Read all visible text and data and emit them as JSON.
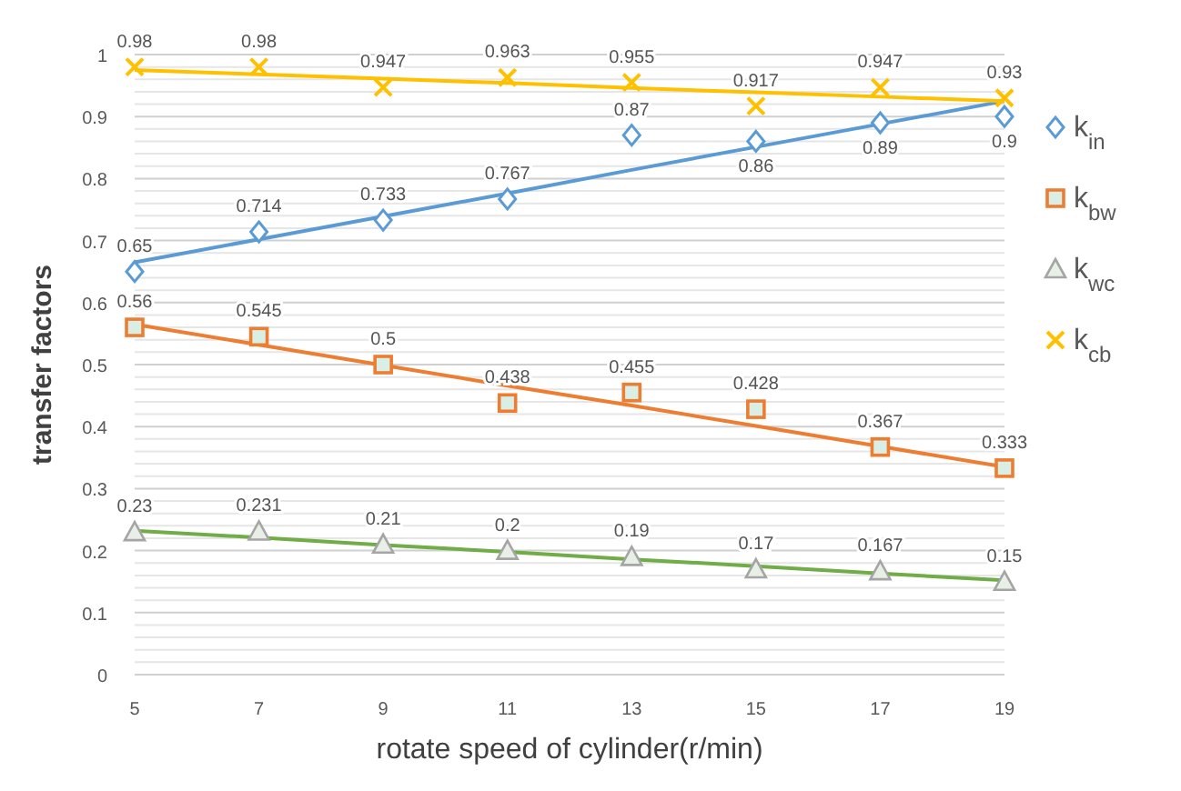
{
  "chart_data": {
    "type": "scatter",
    "xlabel": "rotate speed of cylinder(r/min)",
    "ylabel": "transfer factors",
    "x": [
      5,
      7,
      9,
      11,
      13,
      15,
      17,
      19
    ],
    "xlim": [
      5,
      19
    ],
    "xticks": [
      5,
      7,
      9,
      11,
      13,
      15,
      17,
      19
    ],
    "ylim": [
      0,
      1
    ],
    "yticks": [
      0,
      0.1,
      0.2,
      0.3,
      0.4,
      0.5,
      0.6,
      0.7,
      0.8,
      0.9,
      1
    ],
    "grid": "y",
    "legend": "right",
    "series": [
      {
        "name": "k$_{in}$",
        "color": "#5b9bd5",
        "marker": "diamond",
        "values": [
          0.65,
          0.714,
          0.733,
          0.767,
          0.87,
          0.86,
          0.89,
          0.9
        ],
        "value_labels": [
          "0.65",
          "0.714",
          "0.733",
          "0.767",
          "0.87",
          "0.86",
          "0.89",
          "0.9"
        ]
      },
      {
        "name": "k$_{bw}$",
        "color": "#ed7d31",
        "marker": "square",
        "values": [
          0.56,
          0.545,
          0.5,
          0.438,
          0.455,
          0.428,
          0.367,
          0.333
        ],
        "value_labels": [
          "0.56",
          "0.545",
          "0.5",
          "0.438",
          "0.455",
          "0.428",
          "0.367",
          "0.333"
        ]
      },
      {
        "name": "k$_{wc}$",
        "color": "#a5a5a5",
        "marker": "triangle",
        "values": [
          0.23,
          0.231,
          0.21,
          0.2,
          0.19,
          0.17,
          0.167,
          0.15
        ],
        "value_labels": [
          "0.23",
          "0.231",
          "0.21",
          "0.2",
          "0.19",
          "0.17",
          "0.167",
          "0.15"
        ]
      },
      {
        "name": "k$_{cb}$",
        "color": "#ffc000",
        "marker": "cross",
        "values": [
          0.98,
          0.98,
          0.947,
          0.963,
          0.955,
          0.917,
          0.947,
          0.93
        ],
        "value_labels": [
          "0.98",
          "0.98",
          "0.947",
          "0.963",
          "0.955",
          "0.917",
          "0.947",
          "0.93"
        ]
      },
      {
        "type": "line",
        "color": "#5b9bd5",
        "values": [
          0.665,
          0.702,
          0.739,
          0.776,
          0.814,
          0.851,
          0.888,
          0.925
        ]
      },
      {
        "type": "line",
        "color": "#ed7d31",
        "values": [
          0.565,
          0.532,
          0.499,
          0.466,
          0.434,
          0.401,
          0.368,
          0.335
        ]
      },
      {
        "type": "line",
        "color": "#70ad47",
        "values": [
          0.232,
          0.221,
          0.209,
          0.198,
          0.186,
          0.175,
          0.163,
          0.152
        ]
      },
      {
        "type": "line",
        "color": "#ffc000",
        "values": [
          0.975,
          0.968,
          0.961,
          0.954,
          0.946,
          0.939,
          0.932,
          0.925
        ]
      }
    ]
  }
}
